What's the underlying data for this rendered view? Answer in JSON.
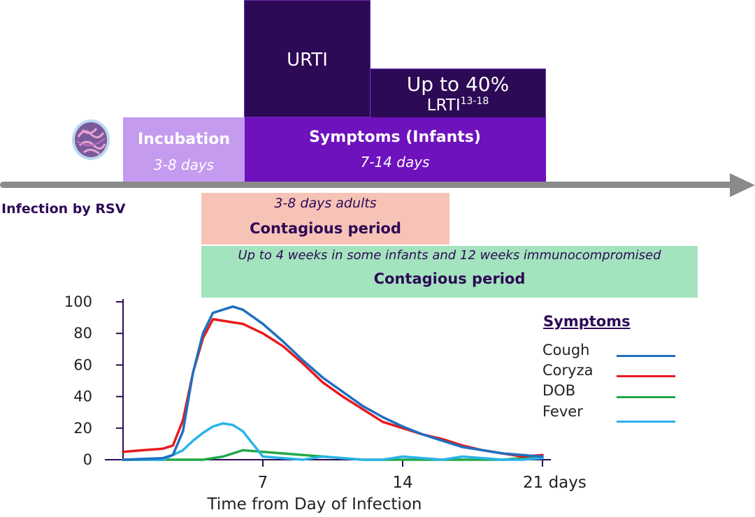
{
  "timeline": {
    "urti": "URTI",
    "lrti_line1": "Up to 40%",
    "lrti_line2": "LRTI",
    "lrti_sup": "13-18",
    "symptoms_title": "Symptoms (Infants)",
    "symptoms_days": "7-14 days",
    "incubation_title": "Incubation",
    "incubation_days": "3-8 days",
    "infection_label": "Infection by RSV",
    "contagious_adults_days": "3-8 days adults",
    "contagious_label": "Contagious period",
    "contagious_infants_note": "Up to 4 weeks in some infants and 12 weeks immunocompromised",
    "contagious_label_2": "Contagious period"
  },
  "colors": {
    "urti": "#2d0a55",
    "symptoms": "#6e12bd",
    "incubation": "#c59bf0",
    "contagious_adults": "#f7c3b6",
    "contagious_infants": "#a3e4be",
    "arrow": "#8a8a8a"
  },
  "chart_data": {
    "type": "line",
    "xlabel": "Time from Day of Infection",
    "xlim": [
      0,
      21
    ],
    "ylim": [
      0,
      100
    ],
    "x_ticks": [
      {
        "value": 7,
        "label": "7"
      },
      {
        "value": 14,
        "label": "14"
      },
      {
        "value": 21,
        "label": "21 days"
      }
    ],
    "y_ticks": [
      {
        "value": 0,
        "label": "0"
      },
      {
        "value": 20,
        "label": "20"
      },
      {
        "value": 40,
        "label": "40"
      },
      {
        "value": 60,
        "label": "60"
      },
      {
        "value": 80,
        "label": "80"
      },
      {
        "value": 100,
        "label": "100"
      }
    ],
    "legend_title": "Symptoms",
    "legend_position": "right",
    "series": [
      {
        "name": "Cough",
        "color": "#1f6fc0",
        "points": [
          [
            0,
            0
          ],
          [
            1,
            0.5
          ],
          [
            2,
            1
          ],
          [
            2.5,
            3
          ],
          [
            3,
            18
          ],
          [
            3.5,
            55
          ],
          [
            4,
            80
          ],
          [
            4.5,
            93
          ],
          [
            5,
            95
          ],
          [
            5.5,
            97
          ],
          [
            6,
            95
          ],
          [
            7,
            86
          ],
          [
            8,
            75
          ],
          [
            9,
            63
          ],
          [
            10,
            52
          ],
          [
            11,
            43
          ],
          [
            12,
            34
          ],
          [
            13,
            27
          ],
          [
            14,
            21
          ],
          [
            15,
            16
          ],
          [
            16,
            12
          ],
          [
            17,
            8
          ],
          [
            18,
            6
          ],
          [
            19,
            4
          ],
          [
            20,
            3
          ],
          [
            21,
            2
          ]
        ]
      },
      {
        "name": "Coryza",
        "color": "#e8191f",
        "points": [
          [
            0,
            5
          ],
          [
            1,
            6
          ],
          [
            2,
            7
          ],
          [
            2.5,
            9
          ],
          [
            3,
            25
          ],
          [
            3.5,
            55
          ],
          [
            4,
            77
          ],
          [
            4.5,
            89
          ],
          [
            5,
            88
          ],
          [
            6,
            86
          ],
          [
            7,
            80
          ],
          [
            8,
            72
          ],
          [
            9,
            61
          ],
          [
            10,
            49
          ],
          [
            11,
            40
          ],
          [
            12,
            32
          ],
          [
            13,
            24
          ],
          [
            14,
            20
          ],
          [
            15,
            16
          ],
          [
            16,
            13
          ],
          [
            17,
            9
          ],
          [
            18,
            6
          ],
          [
            19,
            4
          ],
          [
            20,
            2
          ],
          [
            21,
            3
          ]
        ]
      },
      {
        "name": "DOB",
        "color": "#21a84a",
        "points": [
          [
            0,
            0
          ],
          [
            1,
            0
          ],
          [
            2,
            0
          ],
          [
            3,
            0
          ],
          [
            4,
            0
          ],
          [
            5,
            2
          ],
          [
            5.5,
            4
          ],
          [
            6,
            6
          ],
          [
            7,
            5
          ],
          [
            8,
            4
          ],
          [
            9,
            3
          ],
          [
            10,
            2
          ],
          [
            11,
            1
          ],
          [
            12,
            0
          ],
          [
            13,
            0
          ],
          [
            14,
            0
          ],
          [
            15,
            0
          ],
          [
            16,
            0
          ],
          [
            17,
            0
          ],
          [
            18,
            0
          ],
          [
            19,
            0
          ],
          [
            20,
            1
          ],
          [
            21,
            1
          ]
        ]
      },
      {
        "name": "Fever",
        "color": "#29b3ea",
        "points": [
          [
            0,
            0
          ],
          [
            1,
            0
          ],
          [
            2,
            0
          ],
          [
            2.5,
            3
          ],
          [
            3,
            6
          ],
          [
            3.5,
            12
          ],
          [
            4,
            17
          ],
          [
            4.5,
            21
          ],
          [
            5,
            23
          ],
          [
            5.5,
            22
          ],
          [
            6,
            18
          ],
          [
            6.5,
            10
          ],
          [
            7,
            2
          ],
          [
            8,
            1
          ],
          [
            9,
            0
          ],
          [
            10,
            2
          ],
          [
            11,
            1
          ],
          [
            12,
            0
          ],
          [
            13,
            0
          ],
          [
            14,
            2
          ],
          [
            15,
            1
          ],
          [
            16,
            0
          ],
          [
            17,
            2
          ],
          [
            18,
            1
          ],
          [
            19,
            0
          ],
          [
            20,
            0
          ],
          [
            21,
            1
          ]
        ]
      }
    ]
  }
}
